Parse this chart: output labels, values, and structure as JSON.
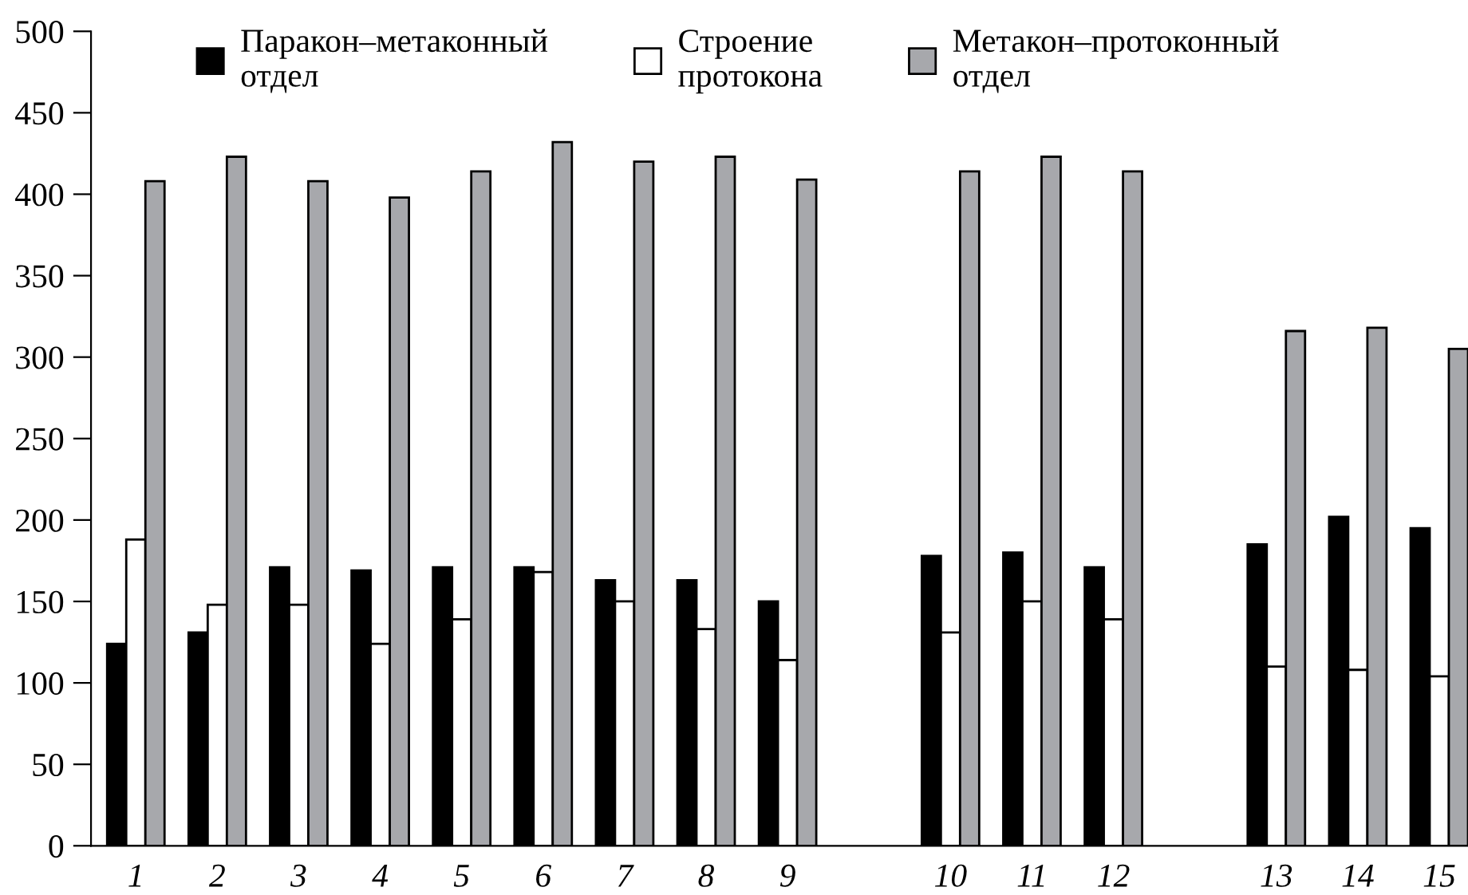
{
  "chart_data": {
    "type": "bar",
    "categories": [
      "1",
      "2",
      "3",
      "4",
      "5",
      "6",
      "7",
      "8",
      "9",
      null,
      "10",
      "11",
      "12",
      null,
      "13",
      "14",
      "15"
    ],
    "series": [
      {
        "name": "Паракон–метаконный отдел",
        "color": "#000000",
        "values": [
          124,
          131,
          171,
          169,
          171,
          171,
          163,
          163,
          150,
          null,
          178,
          180,
          171,
          null,
          185,
          202,
          195
        ]
      },
      {
        "name": "Строение протокона",
        "color": "#ffffff",
        "values": [
          188,
          148,
          148,
          124,
          139,
          168,
          150,
          133,
          114,
          null,
          131,
          150,
          139,
          null,
          110,
          108,
          104
        ]
      },
      {
        "name": "Метакон–протоконный отдел",
        "color": "#a7a8ac",
        "values": [
          408,
          423,
          408,
          398,
          414,
          432,
          420,
          423,
          409,
          null,
          414,
          423,
          414,
          null,
          316,
          318,
          305
        ]
      }
    ],
    "ylim": [
      0,
      500
    ],
    "yticks": [
      0,
      50,
      100,
      150,
      200,
      250,
      300,
      350,
      400,
      450,
      500
    ],
    "grid": false,
    "legend": "top"
  }
}
